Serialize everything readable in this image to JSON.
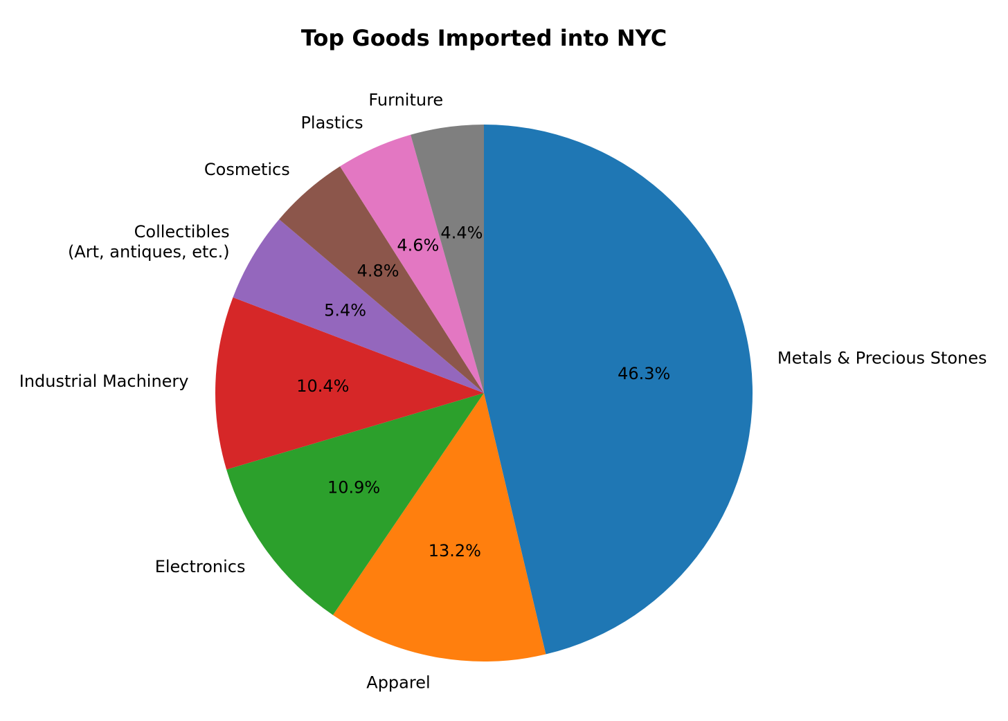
{
  "chart_data": {
    "type": "pie",
    "title": "Top Goods Imported into NYC",
    "categories": [
      "Metals & Precious Stones",
      "Apparel",
      "Electronics",
      "Industrial Machinery",
      "Collectibles\n(Art, antiques, etc.)",
      "Cosmetics",
      "Plastics",
      "Furniture"
    ],
    "values": [
      46.3,
      13.2,
      10.9,
      10.4,
      5.4,
      4.8,
      4.6,
      4.4
    ],
    "value_labels": [
      "46.3%",
      "13.2%",
      "10.9%",
      "10.4%",
      "5.4%",
      "4.8%",
      "4.6%",
      "4.4%"
    ],
    "colors": [
      "#1f77b4",
      "#ff7f0e",
      "#2ca02c",
      "#d62728",
      "#9467bd",
      "#8c564b",
      "#e377c2",
      "#7f7f7f"
    ]
  }
}
